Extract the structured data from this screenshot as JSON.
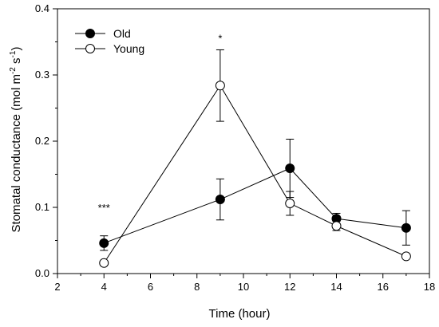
{
  "chart_data": {
    "type": "line",
    "xlabel": "Time (hour)",
    "ylabel_main": "Stomatal conductance (mol m",
    "ylabel_sup1": "-2",
    "ylabel_mid": " s",
    "ylabel_sup2": "-1",
    "ylabel_end": ")",
    "xlim": [
      2,
      18
    ],
    "ylim": [
      0,
      0.4
    ],
    "x_ticks": [
      "2",
      "4",
      "6",
      "8",
      "10",
      "12",
      "14",
      "16",
      "18"
    ],
    "y_ticks": [
      "0.0",
      "0.1",
      "0.2",
      "0.3",
      "0.4"
    ],
    "legend_position": "top-left",
    "grid": false,
    "series": [
      {
        "name": "Old",
        "marker": "filled-circle",
        "x": [
          4,
          9,
          12,
          14,
          17
        ],
        "y": [
          0.046,
          0.112,
          0.159,
          0.083,
          0.069
        ],
        "err": [
          0.011,
          0.031,
          0.044,
          0.008,
          0.026
        ]
      },
      {
        "name": "Young",
        "marker": "open-circle",
        "x": [
          4,
          9,
          12,
          14,
          17
        ],
        "y": [
          0.016,
          0.284,
          0.106,
          0.072,
          0.026
        ],
        "err": [
          0.0,
          0.054,
          0.018,
          0.007,
          0.0
        ]
      }
    ],
    "annotations": [
      {
        "text": "***",
        "x": 4,
        "y": 0.099
      },
      {
        "text": "*",
        "x": 9,
        "y": 0.355
      }
    ],
    "colors": {
      "old_fill": "#000000",
      "young_fill": "#ffffff",
      "line": "#000000"
    }
  }
}
